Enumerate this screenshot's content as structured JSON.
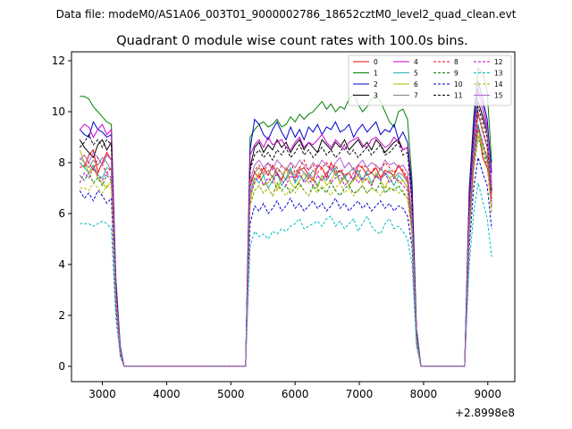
{
  "chart_data": {
    "type": "line",
    "subtitle": "Data file: modeM0/AS1A06_003T01_9000002786_18652cztM0_level2_quad_clean.evt",
    "title": "Quadrant 0 module wise count rates with 100.0s bins.",
    "xlabel": "",
    "ylabel": "",
    "offset_label": "+2.8998e8",
    "x_ticks": [
      3000,
      4000,
      5000,
      6000,
      7000,
      8000,
      9000
    ],
    "y_ticks": [
      0,
      2,
      4,
      6,
      8,
      10,
      12
    ],
    "xlim": [
      2520,
      9420
    ],
    "ylim": [
      -0.6,
      12.35
    ],
    "grid": false,
    "legend": {
      "placement": "top-right",
      "columns": 4
    },
    "x": [
      2650,
      2720,
      2790,
      2860,
      2930,
      3000,
      3070,
      3140,
      3210,
      3280,
      3340,
      5230,
      5300,
      5370,
      5440,
      5510,
      5580,
      5650,
      5720,
      5790,
      5860,
      5930,
      6000,
      6070,
      6140,
      6210,
      6280,
      6350,
      6420,
      6490,
      6560,
      6630,
      6700,
      6770,
      6840,
      6910,
      6980,
      7050,
      7120,
      7190,
      7260,
      7330,
      7400,
      7470,
      7540,
      7610,
      7680,
      7750,
      7820,
      7890,
      7960,
      8640,
      8710,
      8780,
      8850,
      8920,
      8990,
      9060
    ],
    "series": [
      {
        "name": "0",
        "color": "#ff0000",
        "dash": false,
        "values": [
          8.0,
          7.8,
          8.3,
          8.5,
          7.6,
          8.0,
          8.4,
          8.1,
          2.8,
          0.6,
          0.0,
          0.0,
          7.2,
          7.6,
          7.4,
          7.8,
          7.5,
          7.9,
          7.6,
          7.3,
          7.8,
          7.6,
          7.4,
          7.7,
          7.8,
          7.5,
          7.3,
          7.9,
          7.8,
          7.4,
          8.0,
          7.6,
          7.7,
          7.5,
          7.6,
          7.3,
          7.9,
          7.8,
          7.5,
          7.6,
          7.8,
          7.4,
          7.7,
          7.6,
          7.5,
          7.9,
          7.6,
          7.3,
          5.8,
          1.2,
          0.0,
          0.0,
          5.5,
          8.6,
          9.5,
          8.2,
          7.8,
          6.8
        ]
      },
      {
        "name": "1",
        "color": "#008000",
        "dash": false,
        "values": [
          10.6,
          10.6,
          10.5,
          10.2,
          10.0,
          9.8,
          9.6,
          9.5,
          3.5,
          0.8,
          0.0,
          0.0,
          9.0,
          9.3,
          9.5,
          9.6,
          9.4,
          9.5,
          9.7,
          9.4,
          9.5,
          9.8,
          9.6,
          9.9,
          9.7,
          9.9,
          10.0,
          10.2,
          10.4,
          10.1,
          10.3,
          10.0,
          10.2,
          10.1,
          10.5,
          10.7,
          10.3,
          10.0,
          10.2,
          10.5,
          10.6,
          10.4,
          10.0,
          9.6,
          9.4,
          10.0,
          10.1,
          9.7,
          7.3,
          1.5,
          0.0,
          0.0,
          7.0,
          9.8,
          11.7,
          11.5,
          10.8,
          8.0
        ]
      },
      {
        "name": "2",
        "color": "#0000cc",
        "dash": false,
        "values": [
          9.3,
          9.1,
          9.0,
          9.6,
          9.3,
          9.2,
          9.0,
          9.1,
          3.3,
          0.7,
          0.0,
          0.0,
          8.5,
          9.7,
          9.5,
          9.1,
          8.9,
          9.3,
          9.6,
          9.2,
          8.9,
          9.4,
          9.0,
          9.3,
          8.9,
          9.4,
          9.2,
          9.5,
          9.1,
          9.4,
          9.3,
          9.6,
          9.2,
          9.3,
          9.5,
          9.0,
          9.3,
          9.5,
          9.2,
          9.4,
          9.6,
          9.1,
          9.3,
          9.2,
          9.5,
          8.9,
          9.2,
          8.8,
          7.0,
          1.4,
          0.0,
          0.0,
          6.8,
          9.5,
          11.2,
          10.5,
          9.7,
          7.6
        ]
      },
      {
        "name": "3",
        "color": "#000000",
        "dash": false,
        "values": [
          8.9,
          8.6,
          8.4,
          8.2,
          8.7,
          8.9,
          8.5,
          8.8,
          3.0,
          0.6,
          0.0,
          0.0,
          7.8,
          8.6,
          8.8,
          8.4,
          8.7,
          8.5,
          8.9,
          8.6,
          8.8,
          8.4,
          8.7,
          8.9,
          8.5,
          8.8,
          8.6,
          8.4,
          8.9,
          8.7,
          8.5,
          8.8,
          8.6,
          8.9,
          8.5,
          8.7,
          8.9,
          8.6,
          8.8,
          8.5,
          8.9,
          8.7,
          8.4,
          8.6,
          8.8,
          8.9,
          8.5,
          8.6,
          6.5,
          1.3,
          0.0,
          0.0,
          6.2,
          9.0,
          10.4,
          9.8,
          9.2,
          7.0
        ]
      },
      {
        "name": "4",
        "color": "#cc00cc",
        "dash": false,
        "values": [
          9.3,
          9.5,
          9.4,
          9.0,
          9.3,
          9.5,
          9.1,
          9.3,
          3.2,
          0.7,
          0.0,
          0.0,
          8.3,
          8.7,
          8.9,
          8.6,
          9.0,
          8.7,
          8.8,
          8.9,
          8.6,
          8.5,
          8.8,
          9.0,
          8.6,
          8.8,
          8.7,
          8.9,
          9.1,
          8.8,
          8.6,
          8.9,
          8.7,
          8.5,
          8.8,
          8.9,
          9.0,
          8.7,
          8.6,
          8.9,
          9.0,
          8.8,
          8.6,
          8.7,
          9.0,
          8.8,
          8.5,
          8.6,
          6.6,
          1.3,
          0.0,
          0.0,
          6.5,
          9.1,
          10.9,
          10.3,
          9.4,
          7.2
        ]
      },
      {
        "name": "5",
        "color": "#20b2aa",
        "dash": false,
        "values": [
          8.0,
          7.8,
          7.6,
          7.9,
          7.5,
          7.4,
          7.8,
          7.7,
          2.6,
          0.5,
          0.0,
          0.0,
          6.8,
          7.4,
          7.2,
          7.5,
          7.0,
          7.3,
          7.6,
          7.1,
          7.4,
          7.8,
          7.2,
          7.5,
          7.3,
          7.6,
          7.4,
          7.1,
          7.5,
          7.3,
          7.6,
          7.8,
          7.2,
          7.5,
          7.1,
          7.4,
          7.7,
          7.3,
          7.6,
          7.2,
          7.5,
          7.3,
          7.6,
          7.4,
          7.1,
          7.5,
          7.3,
          7.0,
          5.5,
          1.1,
          0.0,
          0.0,
          5.4,
          8.2,
          9.5,
          8.7,
          8.1,
          6.3
        ]
      },
      {
        "name": "6",
        "color": "#bbbb00",
        "dash": false,
        "values": [
          8.5,
          8.0,
          7.6,
          7.8,
          7.4,
          7.2,
          7.0,
          7.3,
          2.5,
          0.5,
          0.0,
          0.0,
          6.5,
          7.3,
          7.6,
          7.1,
          7.2,
          7.5,
          6.9,
          7.4,
          7.8,
          7.2,
          7.0,
          7.3,
          7.6,
          7.2,
          7.4,
          7.0,
          7.5,
          7.1,
          7.3,
          7.6,
          7.2,
          7.4,
          7.1,
          7.3,
          7.5,
          7.2,
          7.4,
          7.1,
          7.6,
          7.3,
          7.0,
          7.4,
          7.5,
          7.2,
          7.3,
          7.0,
          5.4,
          1.1,
          0.0,
          0.0,
          5.3,
          8.0,
          9.3,
          8.6,
          8.3,
          6.2
        ]
      },
      {
        "name": "7",
        "color": "#808080",
        "dash": false,
        "values": [
          8.2,
          8.0,
          7.8,
          8.1,
          7.9,
          8.2,
          8.0,
          7.7,
          2.7,
          0.5,
          0.0,
          0.0,
          7.0,
          7.6,
          7.8,
          7.5,
          7.7,
          7.4,
          7.8,
          7.6,
          7.3,
          7.7,
          7.5,
          7.8,
          7.6,
          7.4,
          7.7,
          7.5,
          7.3,
          7.6,
          7.8,
          7.5,
          7.7,
          7.4,
          7.6,
          7.8,
          7.5,
          7.3,
          7.7,
          7.6,
          7.4,
          7.8,
          7.5,
          7.7,
          7.4,
          7.6,
          7.5,
          7.2,
          5.7,
          1.1,
          0.0,
          0.0,
          5.6,
          8.4,
          9.9,
          9.2,
          8.6,
          6.5
        ]
      },
      {
        "name": "8",
        "color": "#ff0000",
        "dash": true,
        "values": [
          7.8,
          7.9,
          8.0,
          7.7,
          8.2,
          7.9,
          7.6,
          7.8,
          2.7,
          0.5,
          0.0,
          0.0,
          7.0,
          7.7,
          7.9,
          7.6,
          8.0,
          7.8,
          7.5,
          7.9,
          7.7,
          8.0,
          7.6,
          7.8,
          8.1,
          7.7,
          7.9,
          7.6,
          7.8,
          8.0,
          7.7,
          7.9,
          7.6,
          7.8,
          8.0,
          7.7,
          7.5,
          7.9,
          7.8,
          7.6,
          7.9,
          7.7,
          8.0,
          7.8,
          7.6,
          7.9,
          7.7,
          7.4,
          5.8,
          1.2,
          0.0,
          0.0,
          5.7,
          8.5,
          10.0,
          9.3,
          8.7,
          6.6
        ]
      },
      {
        "name": "9",
        "color": "#008000",
        "dash": true,
        "values": [
          7.5,
          7.3,
          7.6,
          7.2,
          7.4,
          7.1,
          7.5,
          7.3,
          2.5,
          0.5,
          0.0,
          0.0,
          6.4,
          6.9,
          7.1,
          6.8,
          7.0,
          6.7,
          7.2,
          6.9,
          7.1,
          6.8,
          7.0,
          7.2,
          6.9,
          6.7,
          7.1,
          6.9,
          7.0,
          6.8,
          7.2,
          6.9,
          6.7,
          7.0,
          7.1,
          6.8,
          6.9,
          7.1,
          6.8,
          7.0,
          6.9,
          7.2,
          6.8,
          7.0,
          6.9,
          7.1,
          6.8,
          6.6,
          5.2,
          1.0,
          0.0,
          0.0,
          5.1,
          7.7,
          9.0,
          8.4,
          7.9,
          6.0
        ]
      },
      {
        "name": "10",
        "color": "#0000cc",
        "dash": true,
        "values": [
          6.9,
          6.6,
          6.8,
          6.5,
          6.9,
          6.7,
          6.4,
          6.6,
          2.3,
          0.4,
          0.0,
          0.0,
          5.6,
          6.3,
          6.1,
          6.4,
          6.0,
          6.2,
          6.5,
          6.1,
          6.3,
          6.6,
          6.2,
          6.4,
          6.1,
          6.3,
          6.5,
          6.2,
          6.4,
          6.1,
          6.3,
          6.6,
          6.2,
          6.4,
          6.1,
          6.3,
          6.5,
          6.2,
          6.4,
          6.1,
          6.3,
          6.5,
          6.2,
          6.4,
          6.1,
          6.3,
          6.2,
          5.9,
          4.7,
          0.9,
          0.0,
          0.0,
          4.6,
          7.0,
          8.2,
          7.6,
          7.1,
          5.4
        ]
      },
      {
        "name": "11",
        "color": "#000000",
        "dash": true,
        "values": [
          8.6,
          8.8,
          9.1,
          8.7,
          8.9,
          8.6,
          8.9,
          8.7,
          3.0,
          0.6,
          0.0,
          0.0,
          7.7,
          8.3,
          8.5,
          8.2,
          8.4,
          8.1,
          8.5,
          8.3,
          8.6,
          8.2,
          8.4,
          8.7,
          8.3,
          8.5,
          8.2,
          8.4,
          8.6,
          8.3,
          8.5,
          8.2,
          8.4,
          8.7,
          8.3,
          8.5,
          8.2,
          8.4,
          8.6,
          8.3,
          8.5,
          8.7,
          8.3,
          8.4,
          8.6,
          8.8,
          8.3,
          8.4,
          6.4,
          1.3,
          0.0,
          0.0,
          6.1,
          8.9,
          10.2,
          9.6,
          9.0,
          6.9
        ]
      },
      {
        "name": "12",
        "color": "#cc00cc",
        "dash": true,
        "values": [
          7.2,
          7.6,
          7.4,
          7.8,
          7.5,
          7.3,
          7.6,
          7.4,
          2.6,
          0.5,
          0.0,
          0.0,
          6.7,
          7.2,
          7.5,
          7.1,
          7.4,
          7.2,
          7.6,
          7.3,
          7.1,
          7.5,
          7.3,
          7.6,
          7.2,
          7.4,
          7.1,
          7.5,
          7.3,
          7.6,
          7.2,
          7.4,
          7.5,
          7.1,
          7.3,
          7.6,
          7.2,
          7.4,
          7.3,
          7.1,
          7.5,
          7.3,
          7.6,
          7.2,
          7.4,
          7.3,
          7.1,
          6.9,
          5.4,
          1.1,
          0.0,
          0.0,
          5.3,
          8.0,
          9.4,
          8.8,
          8.2,
          6.3
        ]
      },
      {
        "name": "13",
        "color": "#00bbbb",
        "dash": true,
        "values": [
          5.6,
          5.6,
          5.6,
          5.5,
          5.6,
          5.7,
          5.6,
          5.4,
          1.9,
          0.4,
          0.0,
          0.0,
          4.7,
          5.3,
          5.1,
          5.2,
          5.0,
          5.3,
          5.2,
          5.4,
          5.3,
          5.5,
          5.6,
          5.8,
          5.4,
          5.5,
          5.6,
          5.7,
          5.5,
          5.8,
          5.9,
          5.5,
          5.7,
          5.4,
          5.6,
          5.8,
          5.3,
          5.6,
          5.9,
          5.5,
          5.3,
          5.2,
          5.6,
          5.8,
          5.4,
          5.5,
          5.3,
          5.0,
          4.0,
          0.8,
          0.0,
          0.0,
          4.0,
          6.0,
          7.2,
          6.5,
          5.8,
          4.3
        ]
      },
      {
        "name": "14",
        "color": "#bbbb00",
        "dash": true,
        "values": [
          7.0,
          7.0,
          6.9,
          7.2,
          7.0,
          6.8,
          7.1,
          7.0,
          2.4,
          0.5,
          0.0,
          0.0,
          6.3,
          6.9,
          7.1,
          6.8,
          7.0,
          6.7,
          7.1,
          6.9,
          6.7,
          7.0,
          6.8,
          7.1,
          6.9,
          6.7,
          7.0,
          6.8,
          7.1,
          6.9,
          6.7,
          7.0,
          7.2,
          6.8,
          7.0,
          6.7,
          6.9,
          7.1,
          6.8,
          7.0,
          6.9,
          6.7,
          7.1,
          6.9,
          7.0,
          6.8,
          6.9,
          6.6,
          5.2,
          1.0,
          0.0,
          0.0,
          5.1,
          7.7,
          9.1,
          8.5,
          8.0,
          6.0
        ]
      },
      {
        "name": "15",
        "color": "#aa66cc",
        "dash": false,
        "values": [
          8.1,
          8.3,
          8.0,
          8.4,
          8.2,
          7.9,
          8.3,
          8.1,
          2.8,
          0.6,
          0.0,
          0.0,
          7.3,
          7.9,
          8.1,
          7.8,
          8.0,
          7.7,
          8.1,
          7.9,
          7.7,
          8.0,
          7.8,
          8.1,
          7.9,
          7.7,
          8.0,
          7.8,
          8.1,
          7.9,
          7.7,
          8.0,
          8.2,
          7.8,
          8.0,
          7.7,
          7.9,
          8.1,
          7.8,
          8.0,
          7.9,
          7.7,
          8.1,
          7.9,
          8.0,
          7.8,
          7.9,
          7.6,
          5.9,
          1.2,
          0.0,
          0.0,
          5.8,
          8.6,
          10.8,
          10.0,
          9.3,
          7.0
        ]
      }
    ]
  }
}
